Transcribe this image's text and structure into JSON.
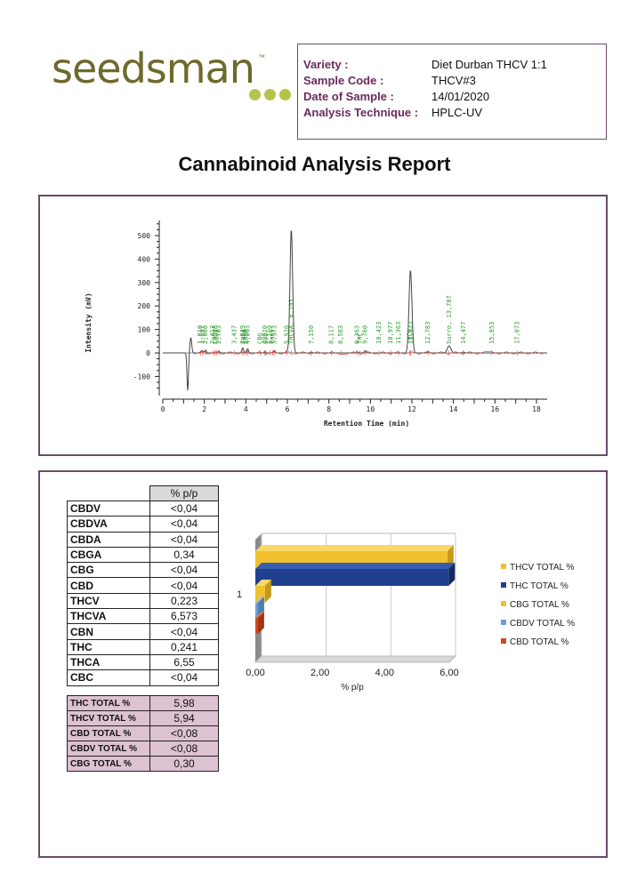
{
  "brand": {
    "name": "seedsman",
    "tm": "™"
  },
  "sample_info": [
    {
      "label": "Variety :",
      "value": "Diet Durban THCV 1:1"
    },
    {
      "label": "Sample Code :",
      "value": "THCV#3"
    },
    {
      "label": "Date of Sample :",
      "value": "14/01/2020"
    },
    {
      "label": "Analysis Technique :",
      "value": "HPLC-UV"
    }
  ],
  "report_title": "Cannabinoid Analysis Report",
  "chromatogram": {
    "xlabel": "Retention Time (min)",
    "ylabel": "Intensity (mV)",
    "x_ticks": [
      "0",
      "2",
      "4",
      "6",
      "8",
      "10",
      "12",
      "14",
      "16",
      "18"
    ],
    "y_ticks": [
      "500",
      "400",
      "300",
      "200",
      "100",
      "0",
      "-100"
    ],
    "peak_labels": [
      "1,897",
      "1,810",
      "2,060",
      "2,413",
      "CBDVA",
      "CBDV",
      "2,703",
      "3,437",
      "CBGA",
      "3,849",
      "CBDA",
      "4,093",
      "CBG",
      "4,920",
      "CBD",
      "5,169",
      "THCV",
      "5,373",
      "5,970",
      "THCVA, 6,193",
      "7,150",
      "8,117",
      "8,583",
      "9,363",
      "THC",
      "9,760",
      "10,423",
      "10,977",
      "11,363",
      "THCA",
      "11,933",
      "12,783",
      "Surro, 13,787",
      "14,477",
      "15,853",
      "17,073"
    ]
  },
  "table_header": "% p/p",
  "cannabinoids": [
    {
      "name": "CBDV",
      "value": "<0,04"
    },
    {
      "name": "CBDVA",
      "value": "<0,04"
    },
    {
      "name": "CBDA",
      "value": "<0,04"
    },
    {
      "name": "CBGA",
      "value": "0,34"
    },
    {
      "name": "CBG",
      "value": "<0,04"
    },
    {
      "name": "CBD",
      "value": "<0,04"
    },
    {
      "name": "THCV",
      "value": "0,223"
    },
    {
      "name": "THCVA",
      "value": "6,573"
    },
    {
      "name": "CBN",
      "value": "<0,04"
    },
    {
      "name": "THC",
      "value": "0,241"
    },
    {
      "name": "THCA",
      "value": "6,55"
    },
    {
      "name": "CBC",
      "value": "<0,04"
    }
  ],
  "totals": [
    {
      "name": "THC TOTAL %",
      "value": "5,98"
    },
    {
      "name": "THCV TOTAL %",
      "value": "5,94"
    },
    {
      "name": "CBD TOTAL %",
      "value": "<0,08"
    },
    {
      "name": "CBDV TOTAL %",
      "value": "<0,08"
    },
    {
      "name": "CBG TOTAL %",
      "value": "0,30"
    }
  ],
  "chart_data": {
    "type": "bar",
    "orientation": "horizontal",
    "categories": [
      "1"
    ],
    "xlabel": "% p/p",
    "x_ticks": [
      "0,00",
      "2,00",
      "4,00",
      "6,00"
    ],
    "xlim": [
      0,
      6
    ],
    "grid": true,
    "legend_position": "right",
    "series": [
      {
        "name": "THCV TOTAL %",
        "values": [
          5.94
        ],
        "color": "#f0c02e"
      },
      {
        "name": "THC TOTAL %",
        "values": [
          5.98
        ],
        "color": "#1f3f8f"
      },
      {
        "name": "CBG TOTAL %",
        "values": [
          0.3
        ],
        "color": "#f0c02e"
      },
      {
        "name": "CBDV TOTAL %",
        "values": [
          0.08
        ],
        "color": "#6d9fd6"
      },
      {
        "name": "CBD TOTAL %",
        "values": [
          0.08
        ],
        "color": "#d04a1e"
      }
    ]
  }
}
